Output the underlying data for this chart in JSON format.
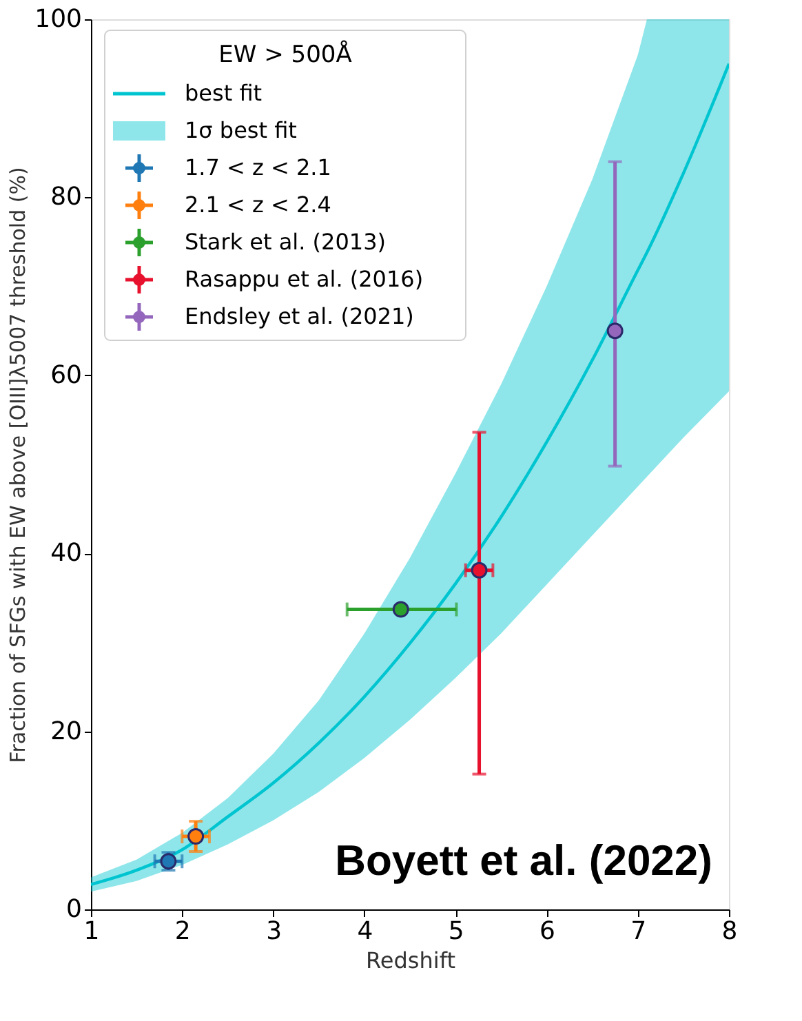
{
  "chart_data": {
    "type": "scatter",
    "xlabel": "Redshift",
    "ylabel": "Fraction of SFGs with EW above [OIII]λ5007 threshold (%)",
    "legend_title": "EW > 500Å",
    "legend": "top left",
    "grid": false,
    "xlim": [
      1,
      8
    ],
    "xticks": [
      1,
      2,
      3,
      4,
      5,
      6,
      7,
      8
    ],
    "ylim": [
      0,
      100
    ],
    "yticks": [
      0,
      20,
      40,
      60,
      80,
      100
    ],
    "series": [
      {
        "name": "best fit",
        "type": "line",
        "color": "#00c5d0",
        "x": [
          1,
          1.5,
          2,
          2.5,
          3,
          3.5,
          4,
          4.5,
          5,
          5.5,
          6,
          6.5,
          7,
          7.1,
          7.5,
          8
        ],
        "values": [
          2.8,
          4.4,
          6.7,
          10.4,
          14.2,
          18.7,
          23.9,
          29.9,
          36.6,
          44.1,
          52.5,
          61.7,
          71.8,
          73.8,
          82.7,
          95
        ],
        "lower": [
          2.0,
          3.2,
          5.0,
          7.3,
          10.0,
          13.2,
          17.0,
          21.3,
          26.0,
          31.0,
          36.5,
          42.0,
          47.5,
          48.6,
          53.0,
          58.2
        ],
        "upper": [
          3.6,
          5.6,
          8.6,
          12.5,
          17.5,
          23.5,
          31.0,
          39.5,
          49.0,
          59.0,
          70.0,
          82.0,
          96.0,
          100,
          100,
          100
        ]
      },
      {
        "name": "1.7 < z < 2.1",
        "marker": "circle",
        "color": "#1f77b4",
        "x": [
          1.85
        ],
        "values": [
          5.4
        ],
        "errors": [
          1.0
        ],
        "xerrors": [
          0.15
        ]
      },
      {
        "name": "2.1 < z < 2.4",
        "marker": "circle",
        "color": "#ff7f0e",
        "x": [
          2.15
        ],
        "values": [
          8.2
        ],
        "errors": [
          1.7
        ],
        "xerrors": [
          0.15
        ]
      },
      {
        "name": "Stark et al. (2013)",
        "marker": "circle",
        "color": "#2ca02c",
        "x": [
          4.4
        ],
        "values": [
          33.7
        ],
        "xerrors": [
          [
            3.81,
            5.01
          ]
        ]
      },
      {
        "name": "Rasappu et al. (2016)",
        "marker": "circle",
        "color": "#e8112d",
        "x": [
          5.26
        ],
        "values": [
          38.1
        ],
        "errors": [
          [
            15.2,
            53.6
          ]
        ],
        "xerrors": [
          0.15
        ]
      },
      {
        "name": "Endsley et al. (2021)",
        "marker": "circle",
        "color": "#9467bd",
        "x": [
          6.75
        ],
        "values": [
          65.0
        ],
        "errors": [
          [
            49.8,
            84.0
          ]
        ],
        "xerrors": [
          0.05
        ]
      }
    ],
    "annotations": [
      "1σ best fit",
      "Boyett et al. (2022)"
    ]
  }
}
